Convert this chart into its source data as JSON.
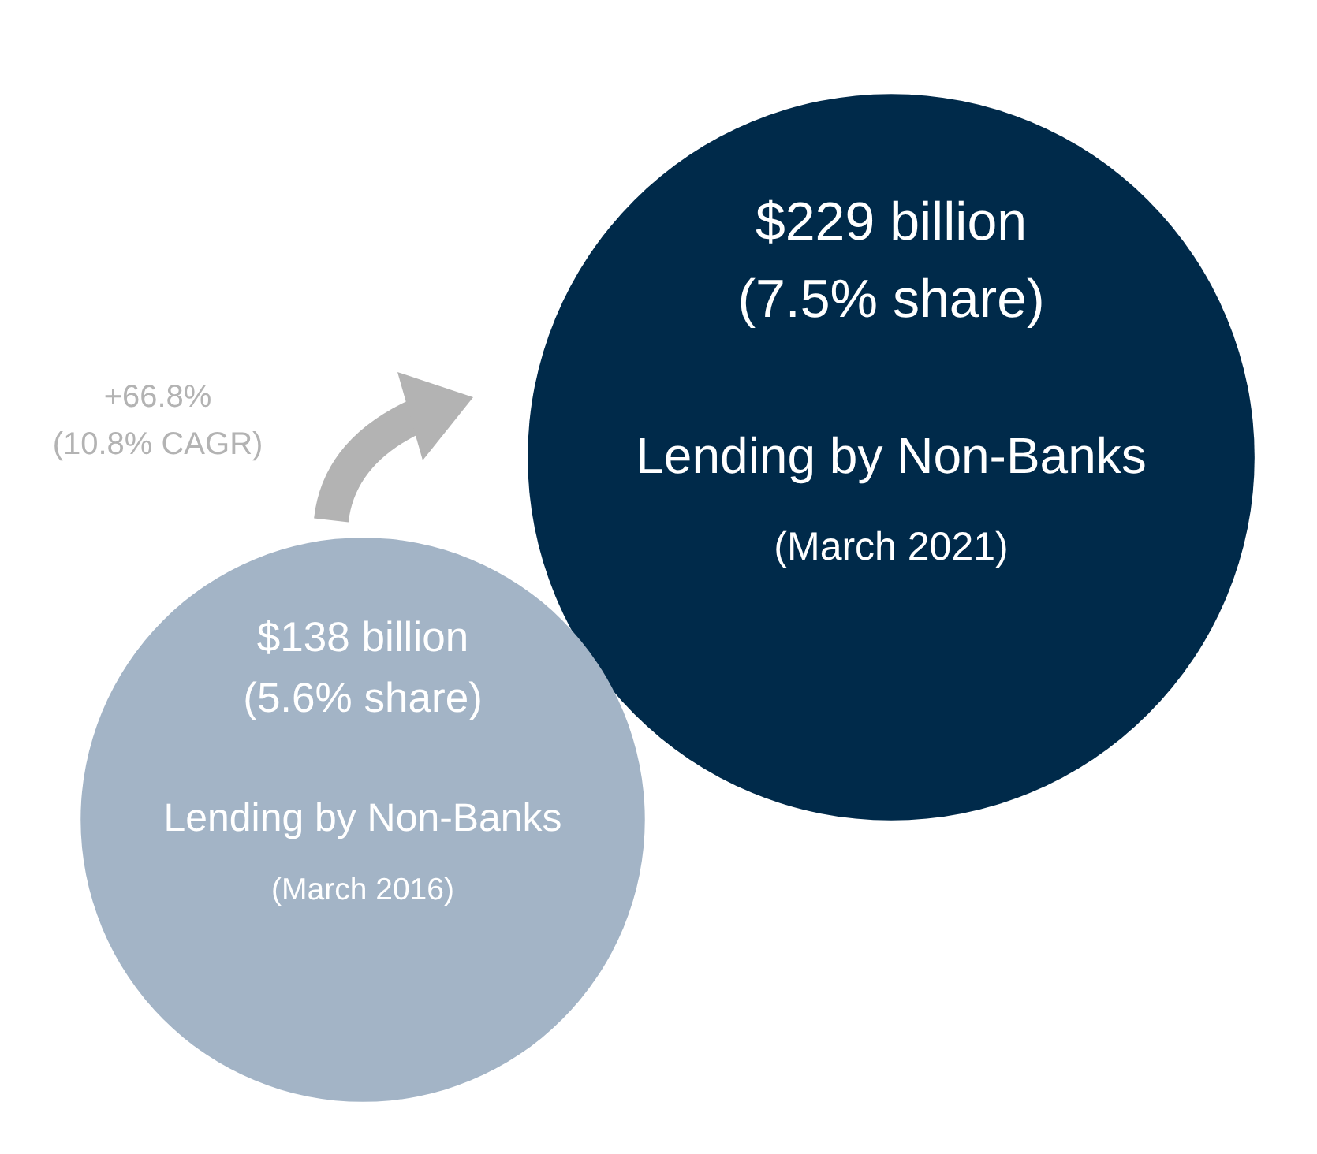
{
  "chart_data": {
    "type": "other",
    "categories": [
      "Lending by Non-Banks",
      "Lending by Non-Banks"
    ],
    "values": [
      138,
      229
    ],
    "value_labels": [
      "$138 billion",
      "$229 billion"
    ],
    "colors": [
      "#a3b4c6",
      "#002a4a"
    ],
    "annotations": [
      "(5.6% share)",
      "(7.5% share)",
      "(March 2016)",
      "(March 2021)",
      "+66.8%",
      "(10.8% CAGR)"
    ]
  }
}
